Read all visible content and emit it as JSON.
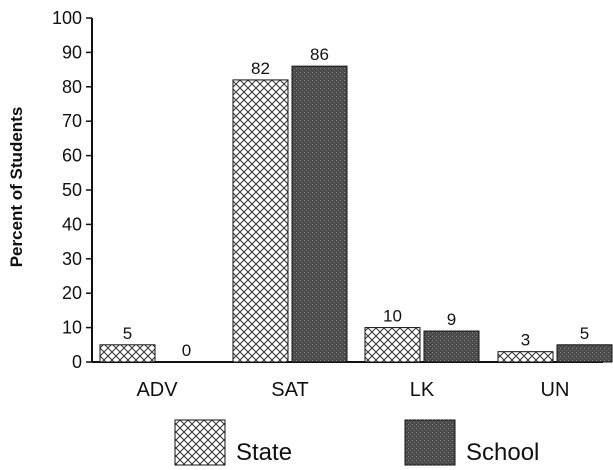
{
  "chart_data": {
    "type": "bar",
    "title": "",
    "xlabel": "",
    "ylabel": "Percent of Students",
    "ylim": [
      0,
      100
    ],
    "yticks": [
      0,
      10,
      20,
      30,
      40,
      50,
      60,
      70,
      80,
      90,
      100
    ],
    "categories": [
      "ADV",
      "SAT",
      "LK",
      "UN"
    ],
    "series": [
      {
        "name": "State",
        "values": [
          5,
          82,
          10,
          3
        ],
        "fill": "crosshatch"
      },
      {
        "name": "School",
        "values": [
          0,
          86,
          9,
          5
        ],
        "fill": "dark-stipple"
      }
    ],
    "grid": false,
    "legend_position": "bottom",
    "colors": {
      "axis": "#111111",
      "school_fill": "#4a4a4a",
      "state_fill": "#ffffff",
      "hatch": "#333333"
    }
  }
}
